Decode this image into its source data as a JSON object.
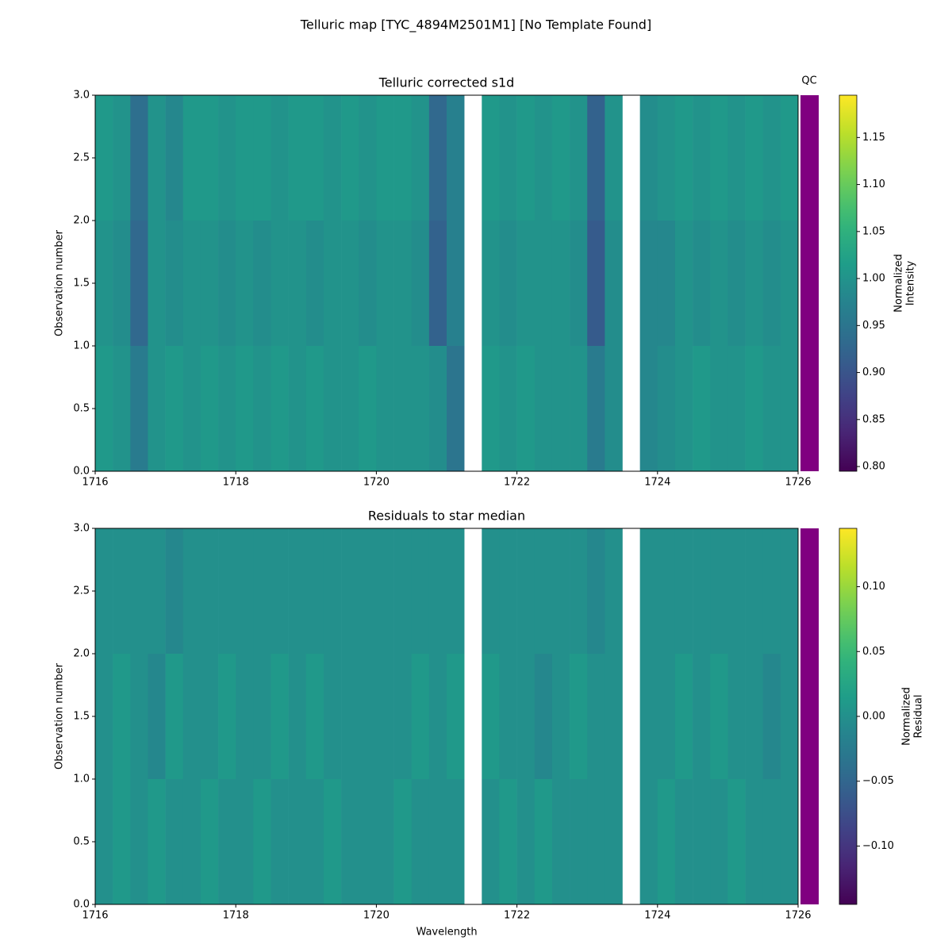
{
  "title": "Telluric map [TYC_4894M2501M1] [No Template Found]",
  "chart_data": [
    {
      "type": "heatmap",
      "title": "Telluric corrected s1d",
      "ylabel": "Observation number",
      "xbins": [
        1716,
        1716.25,
        1716.5,
        1716.75,
        1717,
        1717.25,
        1717.5,
        1717.75,
        1718,
        1718.25,
        1718.5,
        1718.75,
        1719,
        1719.25,
        1719.5,
        1719.75,
        1720,
        1720.25,
        1720.5,
        1720.75,
        1721,
        1721.25,
        1721.5,
        1721.75,
        1722,
        1722.25,
        1722.5,
        1722.75,
        1723,
        1723.25,
        1723.5,
        1723.75,
        1724,
        1724.25,
        1724.5,
        1724.75,
        1725,
        1725.25,
        1725.5,
        1725.75,
        1726
      ],
      "ybins": [
        0,
        1,
        2,
        3
      ],
      "z": [
        [
          1.01,
          1.0,
          0.96,
          1.0,
          1.01,
          1.0,
          1.01,
          1.0,
          1.01,
          1.0,
          1.01,
          1.0,
          1.01,
          1.0,
          1.0,
          1.01,
          1.0,
          1.0,
          1.0,
          0.99,
          0.95,
          null,
          1.01,
          1.0,
          1.01,
          1.0,
          1.0,
          1.0,
          0.96,
          0.99,
          null,
          0.98,
          0.99,
          1.0,
          1.01,
          1.0,
          1.0,
          1.01,
          1.0,
          1.0
        ],
        [
          1.0,
          0.99,
          0.93,
          1.0,
          0.99,
          1.0,
          1.0,
          0.99,
          1.0,
          0.99,
          1.0,
          1.0,
          0.99,
          1.0,
          1.0,
          0.99,
          1.0,
          1.0,
          0.99,
          0.92,
          0.97,
          null,
          1.0,
          0.99,
          1.0,
          1.0,
          1.0,
          0.99,
          0.91,
          0.99,
          null,
          0.98,
          0.98,
          1.0,
          0.99,
          1.0,
          0.99,
          1.0,
          0.99,
          1.0
        ],
        [
          1.01,
          1.0,
          0.94,
          1.0,
          0.98,
          1.01,
          1.01,
          1.0,
          1.01,
          1.01,
          1.0,
          1.01,
          1.01,
          1.0,
          1.01,
          1.0,
          1.01,
          1.01,
          1.0,
          0.93,
          0.97,
          null,
          1.01,
          1.0,
          1.01,
          1.0,
          1.01,
          1.0,
          0.92,
          1.0,
          null,
          0.99,
          1.0,
          1.01,
          1.0,
          1.01,
          1.0,
          1.01,
          1.0,
          1.01
        ]
      ],
      "colormap": "viridis",
      "clim": [
        0.795,
        1.195
      ],
      "xlim": [
        1716,
        1726
      ],
      "xticks": [
        1716,
        1718,
        1720,
        1722,
        1724,
        1726
      ],
      "ylim": [
        0,
        3
      ],
      "yticks": [
        {
          "value": 0,
          "label": "0.0"
        },
        {
          "value": 0.5,
          "label": "0.5"
        },
        {
          "value": 1,
          "label": "1.0"
        },
        {
          "value": 1.5,
          "label": "1.5"
        },
        {
          "value": 2,
          "label": "2.0"
        },
        {
          "value": 2.5,
          "label": "2.5"
        },
        {
          "value": 3,
          "label": "3.0"
        }
      ],
      "cticks": [
        {
          "value": 0.8,
          "label": "0.80"
        },
        {
          "value": 0.85,
          "label": "0.85"
        },
        {
          "value": 0.9,
          "label": "0.90"
        },
        {
          "value": 0.95,
          "label": "0.95"
        },
        {
          "value": 1.0,
          "label": "1.00"
        },
        {
          "value": 1.05,
          "label": "1.05"
        },
        {
          "value": 1.1,
          "label": "1.10"
        },
        {
          "value": 1.15,
          "label": "1.15"
        }
      ],
      "colorbar_label": [
        "Normalized",
        "Intensity"
      ],
      "qc": {
        "label": "QC",
        "color": "#800080"
      }
    },
    {
      "type": "heatmap",
      "title": "Residuals to star median",
      "ylabel": "Observation number",
      "xlabel": "Wavelength",
      "xbins": [
        1716,
        1716.25,
        1716.5,
        1716.75,
        1717,
        1717.25,
        1717.5,
        1717.75,
        1718,
        1718.25,
        1718.5,
        1718.75,
        1719,
        1719.25,
        1719.5,
        1719.75,
        1720,
        1720.25,
        1720.5,
        1720.75,
        1721,
        1721.25,
        1721.5,
        1721.75,
        1722,
        1722.25,
        1722.5,
        1722.75,
        1723,
        1723.25,
        1723.5,
        1723.75,
        1724,
        1724.25,
        1724.5,
        1724.75,
        1725,
        1725.25,
        1725.5,
        1725.75,
        1726
      ],
      "ybins": [
        0,
        1,
        2,
        3
      ],
      "z": [
        [
          0.0,
          0.01,
          0.0,
          0.01,
          0.0,
          0.0,
          0.01,
          0.0,
          0.0,
          0.01,
          0.0,
          0.0,
          0.0,
          0.01,
          0.0,
          0.0,
          0.0,
          0.01,
          0.0,
          0.0,
          0.0,
          null,
          0.0,
          0.01,
          0.0,
          0.01,
          0.0,
          0.0,
          0.0,
          0.0,
          null,
          0.0,
          0.01,
          0.0,
          0.0,
          0.0,
          0.01,
          0.0,
          0.0,
          0.0
        ],
        [
          0.0,
          0.01,
          0.0,
          -0.01,
          0.01,
          0.0,
          0.0,
          0.01,
          0.0,
          0.0,
          0.01,
          0.0,
          0.01,
          0.0,
          0.0,
          0.0,
          0.0,
          0.0,
          0.01,
          0.0,
          0.01,
          null,
          0.01,
          0.0,
          0.0,
          -0.01,
          0.0,
          0.01,
          0.0,
          0.0,
          null,
          0.0,
          0.0,
          0.01,
          0.0,
          0.01,
          0.0,
          0.0,
          -0.01,
          0.0
        ],
        [
          0.0,
          0.0,
          0.0,
          0.0,
          -0.01,
          0.0,
          0.0,
          0.0,
          0.0,
          0.0,
          0.0,
          0.0,
          0.0,
          0.0,
          0.0,
          0.0,
          0.0,
          0.0,
          0.0,
          0.0,
          0.0,
          null,
          0.0,
          0.0,
          0.0,
          0.0,
          0.0,
          0.0,
          -0.01,
          0.0,
          null,
          0.0,
          0.0,
          0.0,
          0.0,
          0.0,
          0.0,
          0.0,
          0.0,
          0.0
        ]
      ],
      "colormap": "viridis",
      "clim": [
        -0.145,
        0.145
      ],
      "xlim": [
        1716,
        1726
      ],
      "xticks": [
        1716,
        1718,
        1720,
        1722,
        1724,
        1726
      ],
      "ylim": [
        0,
        3
      ],
      "yticks": [
        {
          "value": 0,
          "label": "0.0"
        },
        {
          "value": 0.5,
          "label": "0.5"
        },
        {
          "value": 1,
          "label": "1.0"
        },
        {
          "value": 1.5,
          "label": "1.5"
        },
        {
          "value": 2,
          "label": "2.0"
        },
        {
          "value": 2.5,
          "label": "2.5"
        },
        {
          "value": 3,
          "label": "3.0"
        }
      ],
      "cticks": [
        {
          "value": -0.1,
          "label": "−0.10"
        },
        {
          "value": -0.05,
          "label": "−0.05"
        },
        {
          "value": 0,
          "label": "0.00"
        },
        {
          "value": 0.05,
          "label": "0.05"
        },
        {
          "value": 0.1,
          "label": "0.10"
        }
      ],
      "colorbar_label": [
        "Normalized",
        "Residual"
      ],
      "qc": {
        "label": "QC",
        "color": "#800080"
      }
    }
  ]
}
